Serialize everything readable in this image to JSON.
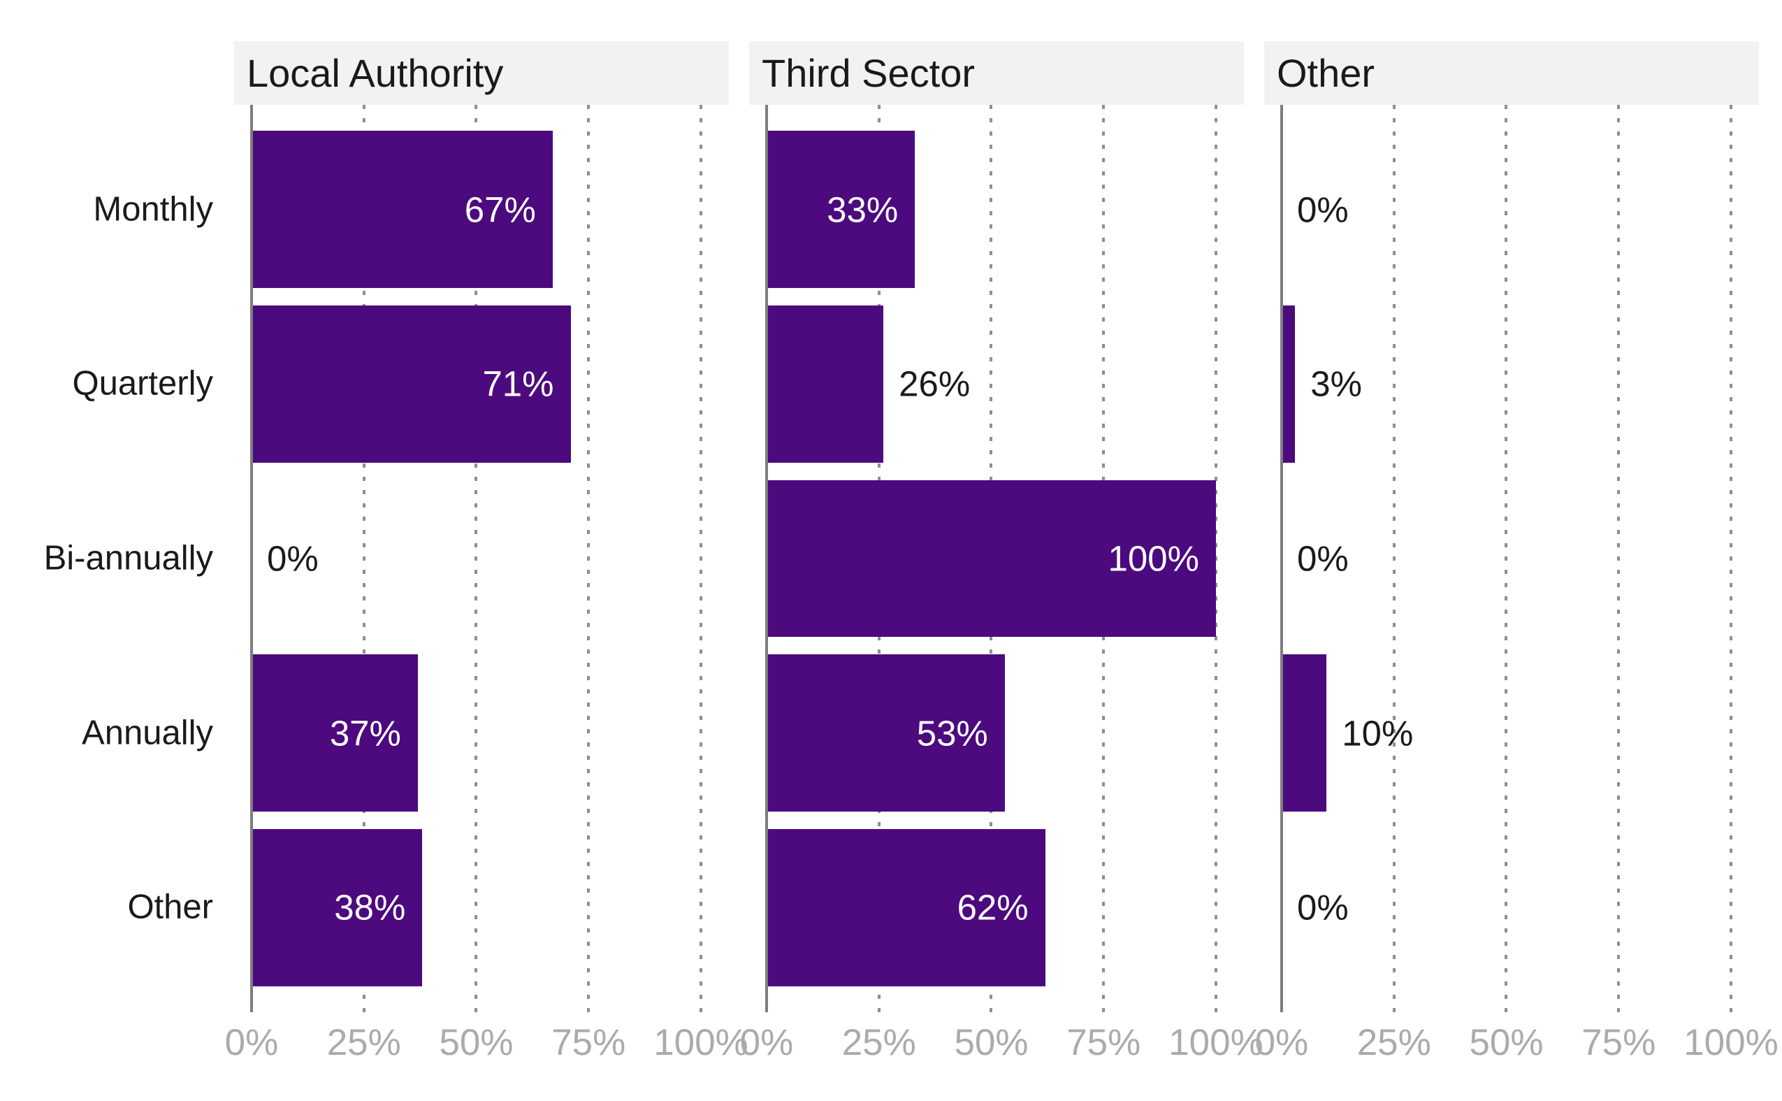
{
  "chart_data": {
    "type": "bar",
    "orientation": "horizontal",
    "title": "",
    "categories": [
      "Monthly",
      "Quarterly",
      "Bi-annually",
      "Annually",
      "Other"
    ],
    "facets": [
      {
        "title": "Local Authority",
        "values": [
          67,
          71,
          0,
          37,
          38
        ],
        "labels": [
          "67%",
          "71%",
          "0%",
          "37%",
          "38%"
        ]
      },
      {
        "title": "Third Sector",
        "values": [
          33,
          26,
          100,
          53,
          62
        ],
        "labels": [
          "33%",
          "26%",
          "100%",
          "53%",
          "62%"
        ]
      },
      {
        "title": "Other",
        "values": [
          0,
          3,
          0,
          10,
          0
        ],
        "labels": [
          "0%",
          "3%",
          "0%",
          "10%",
          "0%"
        ]
      }
    ],
    "x_ticks": [
      "0%",
      "25%",
      "50%",
      "75%",
      "100%"
    ],
    "x_tick_values": [
      0,
      25,
      50,
      75,
      100
    ],
    "xlim": [
      0,
      100
    ],
    "grid": "dotted-vertical-major",
    "legend": "none",
    "label_inside_threshold": 30,
    "colors": {
      "bar": "#4C0A7E",
      "strip_bg": "#F2F2F2",
      "strip_text": "#1A1A1A",
      "category_text": "#1A1A1A",
      "axis_tick_text": "#ABABAB",
      "gridline": "#8F8F8F",
      "axis_line": "#7D7D7D",
      "label_inside": "#FFFFFF",
      "label_outside": "#1A1A1A"
    }
  }
}
